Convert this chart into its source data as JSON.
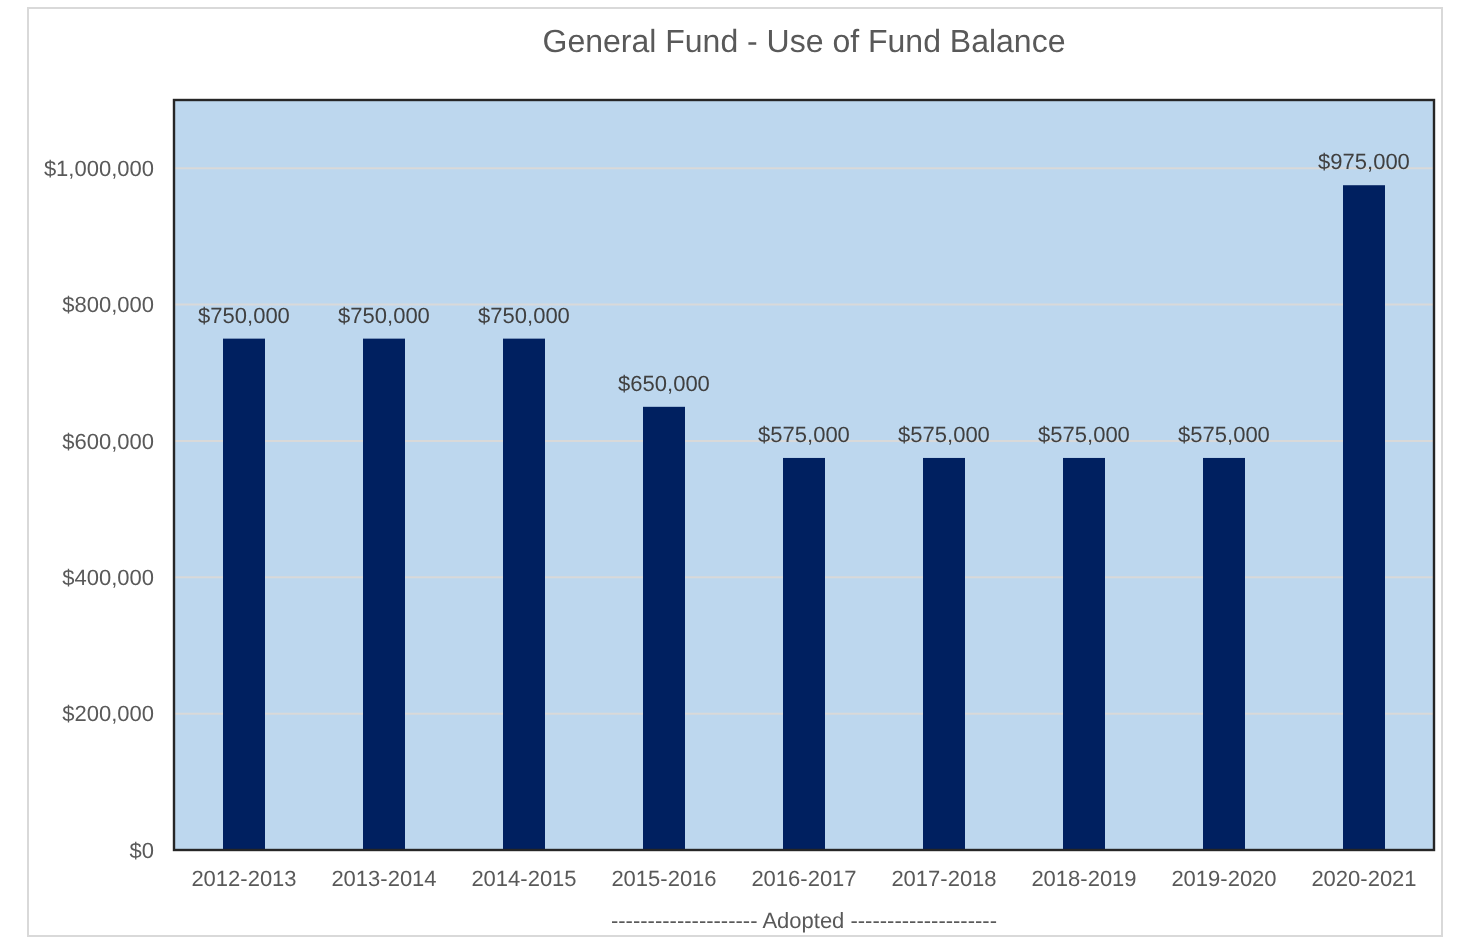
{
  "chart_data": {
    "type": "bar",
    "title": "General Fund - Use of Fund Balance",
    "xlabel": "-------------------- Adopted --------------------",
    "categories": [
      "2012-2013",
      "2013-2014",
      "2014-2015",
      "2015-2016",
      "2016-2017",
      "2017-2018",
      "2018-2019",
      "2019-2020",
      "2020-2021"
    ],
    "values": [
      750000,
      750000,
      750000,
      650000,
      575000,
      575000,
      575000,
      575000,
      975000
    ],
    "value_labels": [
      "$750,000",
      "$750,000",
      "$750,000",
      "$650,000",
      "$575,000",
      "$575,000",
      "$575,000",
      "$575,000",
      "$975,000"
    ],
    "color": "#002060",
    "ylim": [
      0,
      1100000
    ],
    "yticks": [
      {
        "value": 0,
        "label": "$0"
      },
      {
        "value": 200000,
        "label": "$200,000"
      },
      {
        "value": 400000,
        "label": "$400,000"
      },
      {
        "value": 600000,
        "label": "$600,000"
      },
      {
        "value": 800000,
        "label": "$800,000"
      },
      {
        "value": 1000000,
        "label": "$1,000,000"
      }
    ],
    "grid": "y"
  }
}
